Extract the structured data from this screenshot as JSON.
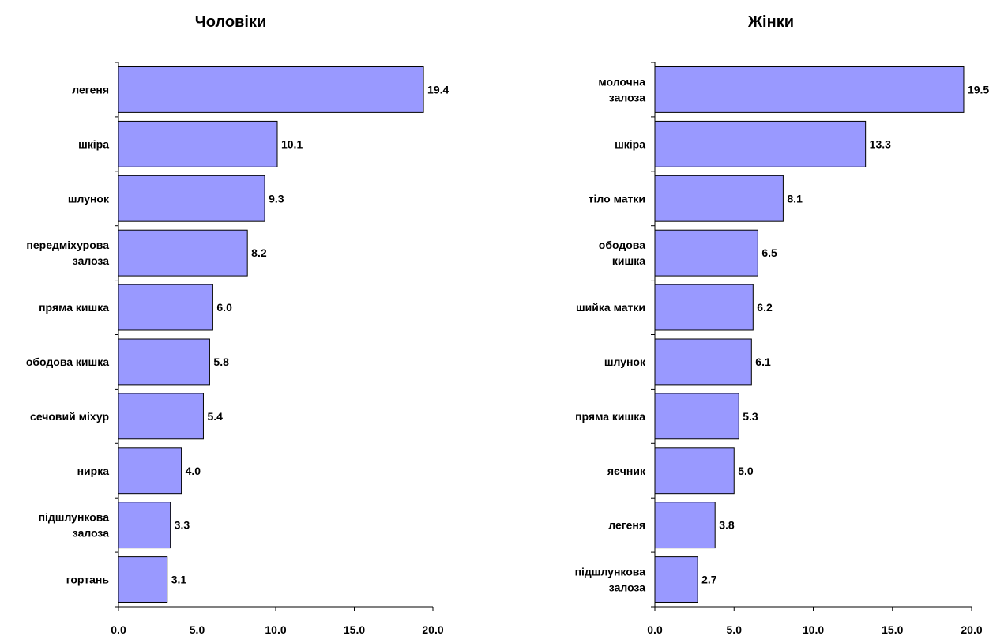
{
  "colors": {
    "bar": "#9999ff",
    "bar_stroke": "#000000",
    "axis": "#000000"
  },
  "chart_data": [
    {
      "type": "bar",
      "orientation": "horizontal",
      "title": "Чоловіки",
      "categories": [
        [
          "легеня"
        ],
        [
          "шкіра"
        ],
        [
          "шлунок"
        ],
        [
          "передміхурова",
          "залоза"
        ],
        [
          "пряма кишка"
        ],
        [
          "ободова кишка"
        ],
        [
          "сечовий міхур"
        ],
        [
          "нирка"
        ],
        [
          "підшлункова",
          "залоза"
        ],
        [
          "гортань"
        ]
      ],
      "values": [
        19.4,
        10.1,
        9.3,
        8.2,
        6.0,
        5.8,
        5.4,
        4.0,
        3.3,
        3.1
      ],
      "value_labels": [
        "19.4",
        "10.1",
        "9.3",
        "8.2",
        "6.0",
        "5.8",
        "5.4",
        "4.0",
        "3.3",
        "3.1"
      ],
      "xlim": [
        0,
        20
      ],
      "ticks": [
        0,
        5,
        10,
        15,
        20
      ],
      "tick_labels": [
        "0.0",
        "5.0",
        "10.0",
        "15.0",
        "20.0"
      ],
      "grid": false,
      "legend": "none"
    },
    {
      "type": "bar",
      "orientation": "horizontal",
      "title": "Жінки",
      "categories": [
        [
          "молочна",
          "залоза"
        ],
        [
          "шкіра"
        ],
        [
          "тіло матки"
        ],
        [
          "ободова",
          "кишка"
        ],
        [
          "шийка матки"
        ],
        [
          "шлунок"
        ],
        [
          "пряма кишка"
        ],
        [
          "яєчник"
        ],
        [
          "легеня"
        ],
        [
          "підшлункова",
          "залоза"
        ]
      ],
      "values": [
        19.5,
        13.3,
        8.1,
        6.5,
        6.2,
        6.1,
        5.3,
        5.0,
        3.8,
        2.7
      ],
      "value_labels": [
        "19.5",
        "13.3",
        "8.1",
        "6.5",
        "6.2",
        "6.1",
        "5.3",
        "5.0",
        "3.8",
        "2.7"
      ],
      "xlim": [
        0,
        20
      ],
      "ticks": [
        0,
        5,
        10,
        15,
        20
      ],
      "tick_labels": [
        "0.0",
        "5.0",
        "10.0",
        "15.0",
        "20.0"
      ],
      "grid": false,
      "legend": "none"
    }
  ]
}
